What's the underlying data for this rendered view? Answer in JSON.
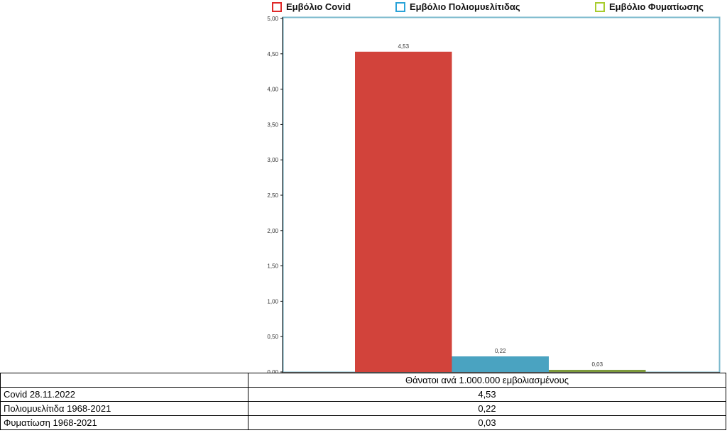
{
  "chart_data": {
    "type": "bar",
    "categories": [
      "Εμβόλιο Covid",
      "Εμβόλιο Πολιομυελίτιδας",
      "Εμβόλιο Φυματίωσης"
    ],
    "values": [
      4.53,
      0.22,
      0.03
    ],
    "value_labels": [
      "4,53",
      "0,22",
      "0,03"
    ],
    "colors": [
      "#d2433b",
      "#4aa3c1",
      "#7d9a3c"
    ],
    "legend_colors": [
      "#e02a2a",
      "#2aa3d8",
      "#a8cc2e"
    ],
    "ylim": [
      0,
      5
    ],
    "yticks": [
      "0,00",
      "0,50",
      "1,00",
      "1,50",
      "2,00",
      "2,50",
      "3,00",
      "3,50",
      "4,00",
      "4,50",
      "5,00"
    ],
    "legend_placement": "top",
    "grid": false,
    "plot_border_color": "#7ab8cc"
  },
  "legend": [
    {
      "label": "Εμβόλιο Covid"
    },
    {
      "label": "Εμβόλιο Πολιομυελίτιδας"
    },
    {
      "label": "Εμβόλιο Φυματίωσης"
    }
  ],
  "table": {
    "header": "Θάνατοι ανά 1.000.000 εμβολιασμένους",
    "rows": [
      {
        "label": "Covid 28.11.2022",
        "value": "4,53"
      },
      {
        "label": "Πολιομυελίτιδα 1968-2021",
        "value": "0,22"
      },
      {
        "label": "Φυματίωση 1968-2021",
        "value": "0,03"
      }
    ]
  }
}
